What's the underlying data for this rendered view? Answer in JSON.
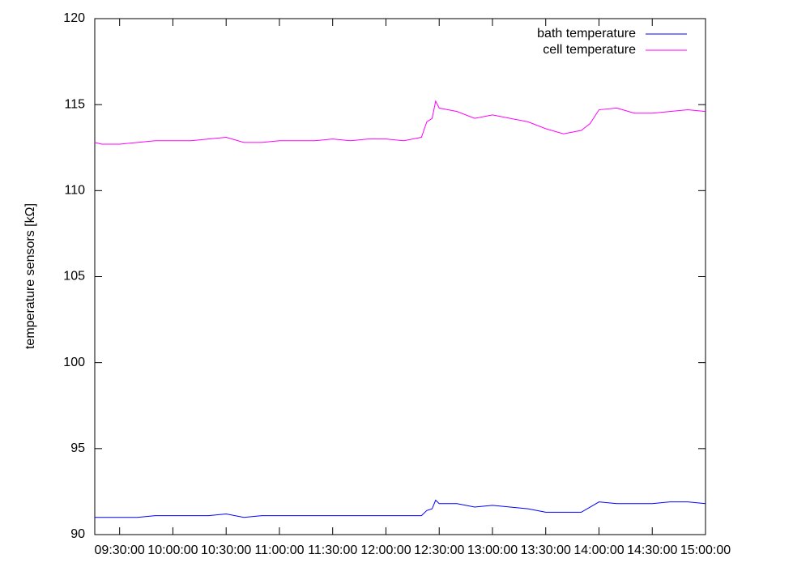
{
  "chart_data": {
    "type": "line",
    "y_label": "temperature sensors [kΩ]",
    "x": [
      "09:16:00",
      "09:20:00",
      "09:30:00",
      "09:40:00",
      "09:50:00",
      "10:00:00",
      "10:10:00",
      "10:20:00",
      "10:30:00",
      "10:40:00",
      "10:50:00",
      "11:00:00",
      "11:10:00",
      "11:20:00",
      "11:30:00",
      "11:40:00",
      "11:50:00",
      "12:00:00",
      "12:10:00",
      "12:20:00",
      "12:23:00",
      "12:26:00",
      "12:28:00",
      "12:30:00",
      "12:40:00",
      "12:50:00",
      "13:00:00",
      "13:10:00",
      "13:20:00",
      "13:30:00",
      "13:40:00",
      "13:50:00",
      "13:55:00",
      "14:00:00",
      "14:10:00",
      "14:20:00",
      "14:30:00",
      "14:40:00",
      "14:50:00",
      "15:00:00"
    ],
    "series": [
      {
        "name": "bath temperature",
        "color": "#0000ff",
        "values": [
          91.0,
          91.0,
          91.0,
          91.0,
          91.1,
          91.1,
          91.1,
          91.1,
          91.2,
          91.0,
          91.1,
          91.1,
          91.1,
          91.1,
          91.1,
          91.1,
          91.1,
          91.1,
          91.1,
          91.1,
          91.4,
          91.5,
          92.0,
          91.8,
          91.8,
          91.6,
          91.7,
          91.6,
          91.5,
          91.3,
          91.3,
          91.3,
          91.6,
          91.9,
          91.8,
          91.8,
          91.8,
          91.9,
          91.9,
          91.8
        ]
      },
      {
        "name": "cell temperature",
        "color": "#ff00ff",
        "values": [
          112.8,
          112.7,
          112.7,
          112.8,
          112.9,
          112.9,
          112.9,
          113.0,
          113.1,
          112.8,
          112.8,
          112.9,
          112.9,
          112.9,
          113.0,
          112.9,
          113.0,
          113.0,
          112.9,
          113.1,
          114.0,
          114.2,
          115.2,
          114.8,
          114.6,
          114.2,
          114.4,
          114.2,
          114.0,
          113.6,
          113.3,
          113.5,
          113.9,
          114.7,
          114.8,
          114.5,
          114.5,
          114.6,
          114.7,
          114.6
        ]
      }
    ],
    "xlim": [
      "09:16:00",
      "15:00:00"
    ],
    "xticks": [
      "09:30:00",
      "10:00:00",
      "10:30:00",
      "11:00:00",
      "11:30:00",
      "12:00:00",
      "12:30:00",
      "13:00:00",
      "13:30:00",
      "14:00:00",
      "14:30:00",
      "15:00:00"
    ],
    "ylim": [
      90,
      120
    ],
    "yticks": [
      90,
      95,
      100,
      105,
      110,
      115,
      120
    ],
    "grid": false,
    "legend": "top-right"
  }
}
